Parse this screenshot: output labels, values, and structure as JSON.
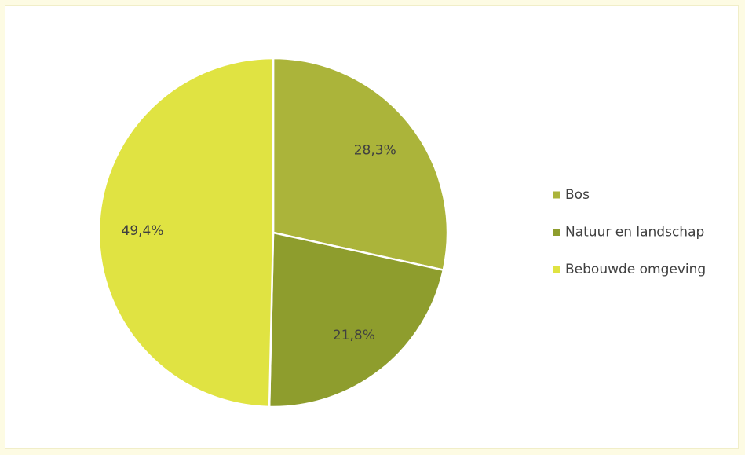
{
  "chart_data": {
    "type": "pie",
    "categories": [
      "Bos",
      "Natuur en landschap",
      "Bebouwde omgeving"
    ],
    "values": [
      28.3,
      21.8,
      49.4
    ],
    "value_labels": [
      "28,3%",
      "21,8%",
      "49,4%"
    ],
    "colors": [
      "#abb43a",
      "#8e9d2d",
      "#e0e342"
    ],
    "legend": "right"
  }
}
